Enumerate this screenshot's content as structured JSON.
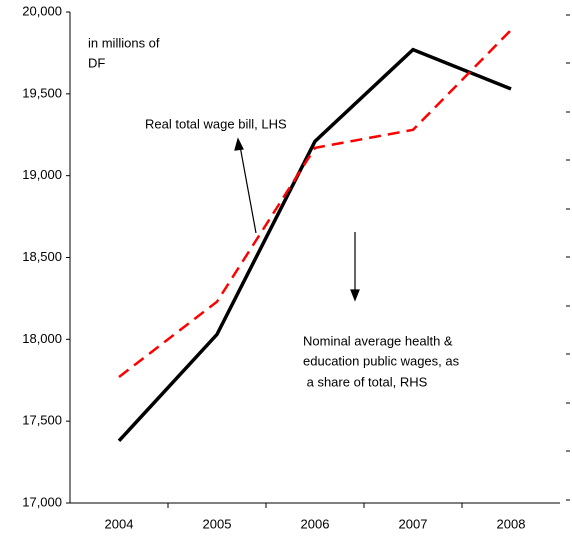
{
  "chart_data": {
    "type": "line",
    "categories": [
      "2004",
      "2005",
      "2006",
      "2007",
      "2008"
    ],
    "series": [
      {
        "name": "Real total wage bill, LHS",
        "color": "#000000",
        "dash": false,
        "values": [
          17380,
          18030,
          19210,
          19770,
          19530
        ]
      },
      {
        "name": "Nominal average health & education public wages, as a share of total, RHS",
        "color": "#ff0000",
        "dash": true,
        "values": [
          17770,
          18230,
          19170,
          19280,
          19890
        ]
      }
    ],
    "annotations": [
      [
        "in millions of",
        "DF"
      ],
      [
        "Real total wage bill, LHS"
      ],
      [
        "Nominal average health &",
        "education public wages, as",
        " a share of total, RHS"
      ]
    ],
    "ylim": [
      17000,
      20000
    ],
    "yticks": [
      {
        "value": 17000,
        "label": "17,000"
      },
      {
        "value": 17500,
        "label": "17,500"
      },
      {
        "value": 18000,
        "label": "18,000"
      },
      {
        "value": 18500,
        "label": "18,500"
      },
      {
        "value": 19000,
        "label": "19,000"
      },
      {
        "value": 19500,
        "label": "19,500"
      },
      {
        "value": 20000,
        "label": "20,000"
      }
    ],
    "grid": false
  }
}
